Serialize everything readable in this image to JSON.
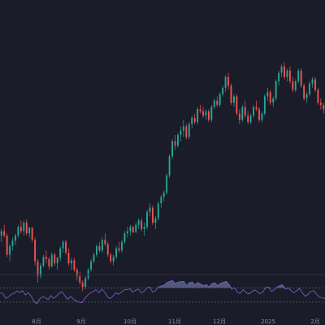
{
  "theme": {
    "background": "#1a1d29",
    "up_color": "#26a69a",
    "down_color": "#ef5350",
    "rsi_line": "#7e57c2",
    "rsi_band_line": "#6a6d78",
    "rsi_overbought_fill": "#7e8cba",
    "tick_text": "#8a8f9e"
  },
  "chart_data": [
    {
      "type": "candlestick",
      "title": "",
      "x_ticks": [
        "8月",
        "9月",
        "10月",
        "11月",
        "12月",
        "2025",
        "2月"
      ],
      "y_range": [
        58000,
        110000
      ],
      "grid": false,
      "candles": [
        [
          66000,
          67500,
          64500,
          67000
        ],
        [
          67000,
          68500,
          65500,
          66000
        ],
        [
          66000,
          66500,
          61000,
          61500
        ],
        [
          61500,
          64000,
          60000,
          63500
        ],
        [
          63500,
          65500,
          62500,
          64800
        ],
        [
          64800,
          66500,
          63800,
          66000
        ],
        [
          66000,
          68500,
          65500,
          68000
        ],
        [
          68000,
          69500,
          66500,
          67000
        ],
        [
          67000,
          69500,
          66000,
          69000
        ],
        [
          69000,
          69800,
          66000,
          66500
        ],
        [
          66500,
          68000,
          65500,
          67800
        ],
        [
          67800,
          68000,
          64500,
          65000
        ],
        [
          65000,
          65500,
          59000,
          60000
        ],
        [
          60000,
          60500,
          55000,
          56500
        ],
        [
          56500,
          59500,
          56000,
          59000
        ],
        [
          59000,
          61500,
          58500,
          61000
        ],
        [
          61000,
          62500,
          59500,
          60500
        ],
        [
          60500,
          61000,
          58000,
          58800
        ],
        [
          58800,
          62000,
          58500,
          61500
        ],
        [
          61500,
          62000,
          59000,
          59500
        ],
        [
          59500,
          61000,
          58000,
          60800
        ],
        [
          60800,
          63500,
          60000,
          63000
        ],
        [
          63000,
          65000,
          62000,
          64500
        ],
        [
          64500,
          65000,
          61500,
          62000
        ],
        [
          62000,
          63000,
          59000,
          59500
        ],
        [
          59500,
          60800,
          58000,
          60200
        ],
        [
          60200,
          60800,
          57500,
          58000
        ],
        [
          58000,
          58500,
          55500,
          56500
        ],
        [
          56500,
          57500,
          54500,
          55000
        ],
        [
          55000,
          55500,
          53000,
          54000
        ],
        [
          54000,
          56500,
          53500,
          56000
        ],
        [
          56000,
          58500,
          55500,
          58000
        ],
        [
          58000,
          60500,
          57500,
          60000
        ],
        [
          60000,
          62000,
          59500,
          61500
        ],
        [
          61500,
          64000,
          61000,
          63500
        ],
        [
          63500,
          64500,
          62000,
          62500
        ],
        [
          62500,
          65500,
          62000,
          65000
        ],
        [
          65000,
          66500,
          63500,
          64000
        ],
        [
          64000,
          64500,
          61000,
          61500
        ],
        [
          61500,
          62000,
          59500,
          60000
        ],
        [
          60000,
          61500,
          59000,
          61000
        ],
        [
          61000,
          63500,
          60500,
          63000
        ],
        [
          63000,
          64500,
          62000,
          62500
        ],
        [
          62500,
          65000,
          62000,
          64500
        ],
        [
          64500,
          67000,
          64000,
          66500
        ],
        [
          66500,
          68000,
          65500,
          67000
        ],
        [
          67000,
          68500,
          66000,
          68000
        ],
        [
          68000,
          68300,
          66500,
          66800
        ],
        [
          66800,
          69000,
          66500,
          68500
        ],
        [
          68500,
          70000,
          67500,
          69500
        ],
        [
          69500,
          70000,
          67000,
          67500
        ],
        [
          67500,
          69000,
          66000,
          68000
        ],
        [
          68000,
          72000,
          67500,
          71500
        ],
        [
          71500,
          73500,
          70500,
          72500
        ],
        [
          72500,
          73000,
          68500,
          69000
        ],
        [
          69000,
          70500,
          67500,
          70000
        ],
        [
          70000,
          74000,
          69500,
          73500
        ],
        [
          73500,
          75500,
          72500,
          75000
        ],
        [
          75000,
          76500,
          74000,
          76000
        ],
        [
          76000,
          80500,
          75500,
          80000
        ],
        [
          80000,
          85000,
          79500,
          84500
        ],
        [
          84500,
          88500,
          84000,
          88000
        ],
        [
          88000,
          89500,
          86000,
          87000
        ],
        [
          87000,
          90000,
          86500,
          89500
        ],
        [
          89500,
          91500,
          88000,
          90500
        ],
        [
          90500,
          93000,
          89000,
          91500
        ],
        [
          91500,
          92000,
          88500,
          89000
        ],
        [
          89000,
          92500,
          88500,
          92000
        ],
        [
          92000,
          94000,
          91000,
          93500
        ],
        [
          93500,
          94500,
          92000,
          92500
        ],
        [
          92500,
          96000,
          92000,
          95500
        ],
        [
          95500,
          96500,
          94500,
          95000
        ],
        [
          95000,
          96000,
          93500,
          94000
        ],
        [
          94000,
          95500,
          93000,
          95000
        ],
        [
          95000,
          95500,
          92500,
          93000
        ],
        [
          93000,
          96500,
          92500,
          96000
        ],
        [
          96000,
          98000,
          95500,
          97500
        ],
        [
          97500,
          98500,
          96000,
          96500
        ],
        [
          96500,
          99500,
          96000,
          99000
        ],
        [
          99000,
          101000,
          98500,
          100500
        ],
        [
          100500,
          103500,
          99500,
          103000
        ],
        [
          103000,
          104000,
          100000,
          101000
        ],
        [
          101000,
          101500,
          96500,
          97000
        ],
        [
          97000,
          99000,
          96000,
          98500
        ],
        [
          98500,
          99000,
          94000,
          94500
        ],
        [
          94500,
          95500,
          92000,
          93000
        ],
        [
          93000,
          96500,
          92500,
          96000
        ],
        [
          96000,
          97500,
          93500,
          94000
        ],
        [
          94000,
          95000,
          92000,
          92500
        ],
        [
          92500,
          94500,
          92000,
          94000
        ],
        [
          94000,
          96500,
          93500,
          96000
        ],
        [
          96000,
          97500,
          95000,
          95500
        ],
        [
          95500,
          96000,
          92500,
          93000
        ],
        [
          93000,
          95000,
          92500,
          94500
        ],
        [
          94500,
          99000,
          94000,
          98500
        ],
        [
          98500,
          100500,
          97500,
          99500
        ],
        [
          99500,
          100000,
          96500,
          97000
        ],
        [
          97000,
          98500,
          96000,
          98000
        ],
        [
          98000,
          102500,
          97500,
          102000
        ],
        [
          102000,
          104500,
          101000,
          104000
        ],
        [
          104000,
          106000,
          103000,
          105500
        ],
        [
          105500,
          106500,
          102500,
          103000
        ],
        [
          103000,
          105000,
          102000,
          104500
        ],
        [
          104500,
          105500,
          101500,
          102000
        ],
        [
          102000,
          103000,
          99500,
          100000
        ],
        [
          100000,
          102500,
          99500,
          102000
        ],
        [
          102000,
          105000,
          101500,
          104500
        ],
        [
          104500,
          105000,
          100500,
          101000
        ],
        [
          101000,
          101500,
          97500,
          98000
        ],
        [
          98000,
          99500,
          97000,
          99000
        ],
        [
          99000,
          102000,
          98500,
          101500
        ],
        [
          101500,
          103000,
          100500,
          102500
        ],
        [
          102500,
          103000,
          99500,
          100000
        ],
        [
          100000,
          100500,
          96500,
          97000
        ],
        [
          97000,
          98000,
          95500,
          96500
        ],
        [
          96500,
          97000,
          94500,
          95500
        ]
      ]
    },
    {
      "type": "line",
      "title": "RSI",
      "y_range": [
        0,
        100
      ],
      "bands": [
        70,
        30
      ],
      "grid": false,
      "values": [
        56,
        54,
        40,
        45,
        52,
        55,
        61,
        57,
        62,
        50,
        56,
        47,
        33,
        25,
        38,
        45,
        43,
        37,
        48,
        40,
        47,
        55,
        59,
        47,
        38,
        46,
        38,
        33,
        30,
        28,
        40,
        49,
        56,
        60,
        64,
        56,
        66,
        58,
        45,
        40,
        47,
        56,
        52,
        58,
        64,
        65,
        67,
        58,
        63,
        66,
        56,
        60,
        70,
        72,
        58,
        62,
        72,
        75,
        77,
        84,
        88,
        90,
        82,
        86,
        87,
        88,
        76,
        84,
        86,
        78,
        85,
        80,
        76,
        79,
        72,
        82,
        84,
        76,
        82,
        85,
        88,
        80,
        66,
        70,
        58,
        54,
        65,
        57,
        53,
        58,
        64,
        60,
        53,
        58,
        70,
        72,
        60,
        64,
        72,
        76,
        78,
        66,
        70,
        62,
        56,
        62,
        68,
        56,
        46,
        52,
        60,
        62,
        52,
        44,
        42,
        40
      ]
    }
  ]
}
